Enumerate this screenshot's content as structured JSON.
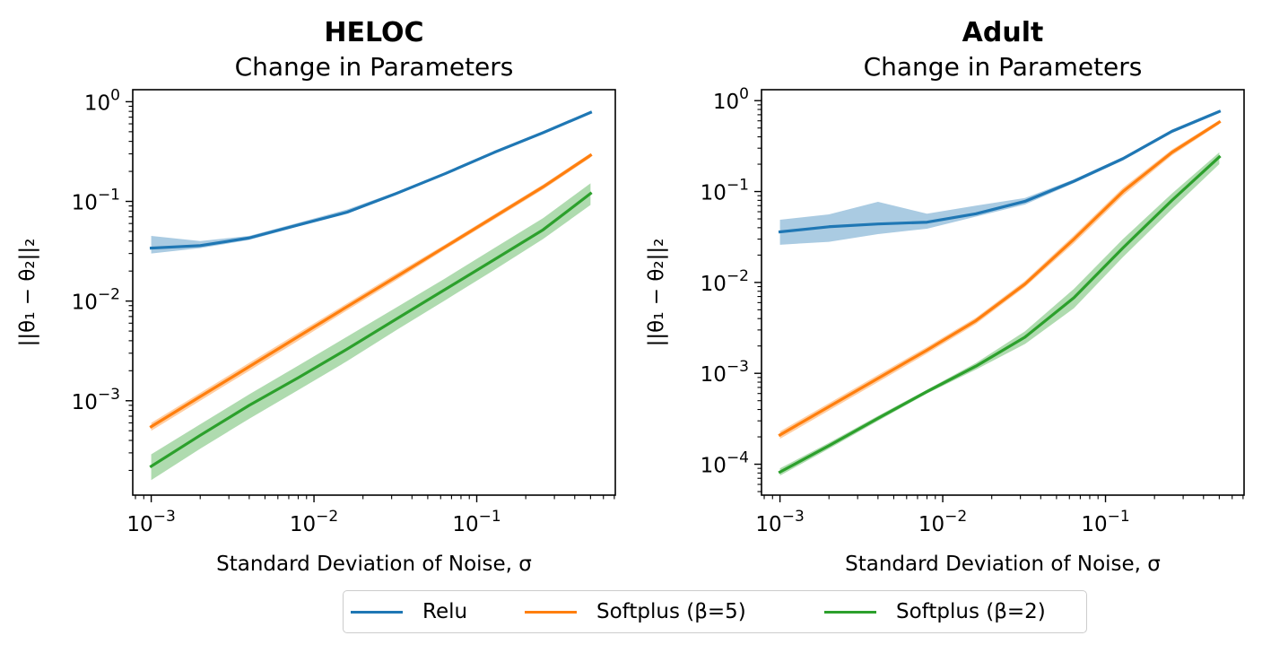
{
  "colors": {
    "relu": "#1f77b4",
    "softplus5": "#ff7f0e",
    "softplus2": "#2ca02c"
  },
  "legend": {
    "placement": "bottom-center",
    "items": [
      {
        "label": "Relu",
        "color": "#1f77b4"
      },
      {
        "label": "Softplus (β=5)",
        "color": "#ff7f0e"
      },
      {
        "label": "Softplus (β=2)",
        "color": "#2ca02c"
      }
    ]
  },
  "chart_data": [
    {
      "type": "line",
      "title": "HELOC",
      "subtitle": "Change in Parameters",
      "xlabel": "Standard Deviation of Noise, σ",
      "ylabel": "||θ₁ − θ₂||₂",
      "xscale": "log",
      "yscale": "log",
      "xlim": [
        0.00077,
        0.71
      ],
      "ylim": [
        0.000113,
        1.32
      ],
      "xticks": [
        {
          "value": 0.001,
          "base": "10",
          "exp": "−3"
        },
        {
          "value": 0.01,
          "base": "10",
          "exp": "−2"
        },
        {
          "value": 0.1,
          "base": "10",
          "exp": "−1"
        }
      ],
      "yticks": [
        {
          "value": 0.001,
          "base": "10",
          "exp": "−3"
        },
        {
          "value": 0.01,
          "base": "10",
          "exp": "−2"
        },
        {
          "value": 0.1,
          "base": "10",
          "exp": "−1"
        },
        {
          "value": 1,
          "base": "10",
          "exp": "0"
        }
      ],
      "x": [
        0.001,
        0.002,
        0.004,
        0.008,
        0.016,
        0.032,
        0.064,
        0.128,
        0.256,
        0.5
      ],
      "series": [
        {
          "name": "Relu",
          "color": "#1f77b4",
          "values": [
            0.034,
            0.036,
            0.043,
            0.058,
            0.078,
            0.12,
            0.19,
            0.31,
            0.49,
            0.78
          ],
          "lower": [
            0.03,
            0.034,
            0.041,
            0.056,
            0.075,
            0.117,
            0.186,
            0.305,
            0.48,
            0.76
          ],
          "upper": [
            0.045,
            0.04,
            0.045,
            0.061,
            0.083,
            0.124,
            0.195,
            0.32,
            0.5,
            0.8
          ]
        },
        {
          "name": "Softplus (β=5)",
          "color": "#ff7f0e",
          "values": [
            0.00055,
            0.0011,
            0.0022,
            0.0044,
            0.0088,
            0.0175,
            0.035,
            0.07,
            0.14,
            0.29
          ],
          "lower": [
            0.0005,
            0.001,
            0.002,
            0.004,
            0.0081,
            0.0162,
            0.033,
            0.066,
            0.132,
            0.275
          ],
          "upper": [
            0.0006,
            0.0012,
            0.0024,
            0.0048,
            0.0095,
            0.0189,
            0.037,
            0.074,
            0.148,
            0.305
          ]
        },
        {
          "name": "Softplus (β=2)",
          "color": "#2ca02c",
          "values": [
            0.00022,
            0.00045,
            0.0009,
            0.0017,
            0.0033,
            0.0066,
            0.0131,
            0.026,
            0.052,
            0.12
          ],
          "lower": [
            0.00016,
            0.00033,
            0.00066,
            0.00128,
            0.0025,
            0.0051,
            0.0102,
            0.0205,
            0.042,
            0.092
          ],
          "upper": [
            0.00029,
            0.00058,
            0.00116,
            0.00225,
            0.0044,
            0.0086,
            0.0169,
            0.034,
            0.068,
            0.152
          ]
        }
      ]
    },
    {
      "type": "line",
      "title": "Adult",
      "subtitle": "Change in Parameters",
      "xlabel": "Standard Deviation of Noise, σ",
      "ylabel": "||θ₁ − θ₂||₂",
      "xscale": "log",
      "yscale": "log",
      "xlim": [
        0.00077,
        0.71
      ],
      "ylim": [
        4.57e-05,
        1.32
      ],
      "xticks": [
        {
          "value": 0.001,
          "base": "10",
          "exp": "−3"
        },
        {
          "value": 0.01,
          "base": "10",
          "exp": "−2"
        },
        {
          "value": 0.1,
          "base": "10",
          "exp": "−1"
        }
      ],
      "yticks": [
        {
          "value": 0.0001,
          "base": "10",
          "exp": "−4"
        },
        {
          "value": 0.001,
          "base": "10",
          "exp": "−3"
        },
        {
          "value": 0.01,
          "base": "10",
          "exp": "−2"
        },
        {
          "value": 0.1,
          "base": "10",
          "exp": "−1"
        },
        {
          "value": 1,
          "base": "10",
          "exp": "0"
        }
      ],
      "x": [
        0.001,
        0.002,
        0.004,
        0.008,
        0.016,
        0.032,
        0.064,
        0.128,
        0.256,
        0.5
      ],
      "series": [
        {
          "name": "Relu",
          "color": "#1f77b4",
          "values": [
            0.036,
            0.041,
            0.044,
            0.046,
            0.057,
            0.078,
            0.13,
            0.23,
            0.46,
            0.76
          ],
          "lower": [
            0.026,
            0.028,
            0.034,
            0.039,
            0.053,
            0.072,
            0.124,
            0.22,
            0.44,
            0.73
          ],
          "upper": [
            0.049,
            0.056,
            0.077,
            0.057,
            0.07,
            0.085,
            0.136,
            0.24,
            0.48,
            0.79
          ]
        },
        {
          "name": "Softplus (β=5)",
          "color": "#ff7f0e",
          "values": [
            0.00021,
            0.00043,
            0.00088,
            0.0018,
            0.0038,
            0.0096,
            0.03,
            0.1,
            0.27,
            0.58
          ],
          "lower": [
            0.00019,
            0.00039,
            0.0008,
            0.00165,
            0.0035,
            0.0089,
            0.027,
            0.09,
            0.25,
            0.55
          ],
          "upper": [
            0.00023,
            0.00047,
            0.00096,
            0.00195,
            0.0041,
            0.0104,
            0.033,
            0.11,
            0.29,
            0.61
          ]
        },
        {
          "name": "Softplus (β=2)",
          "color": "#2ca02c",
          "values": [
            8.2e-05,
            0.00016,
            0.00032,
            0.00063,
            0.0012,
            0.0025,
            0.0068,
            0.024,
            0.08,
            0.24
          ],
          "lower": [
            7.5e-05,
            0.000148,
            0.0003,
            0.0006,
            0.0011,
            0.0021,
            0.0052,
            0.019,
            0.064,
            0.2
          ],
          "upper": [
            9e-05,
            0.000172,
            0.00034,
            0.00066,
            0.0013,
            0.0029,
            0.0085,
            0.03,
            0.095,
            0.27
          ]
        }
      ]
    }
  ]
}
